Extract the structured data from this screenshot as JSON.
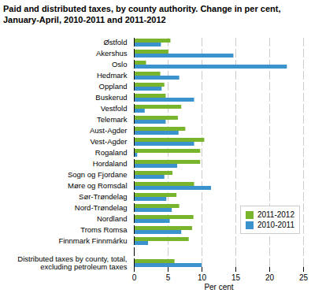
{
  "chart_data": {
    "type": "bar",
    "orientation": "horizontal",
    "title": "Paid and distributed taxes, by county authority. Change in per cent, January-April, 2010-2011 and 2011-2012",
    "x_label": "Per cent",
    "categories": [
      "Østfold",
      "Akershus",
      "Oslo",
      "Hedmark",
      "Oppland",
      "Buskerud",
      "Vestfold",
      "Telemark",
      "Aust-Agder",
      "Vest-Agder",
      "Rogaland",
      "Hordaland",
      "Sogn og Fjordane",
      "Møre og Romsdal",
      "Sør-Trøndelag",
      "Nord-Trøndelag",
      "Nordland",
      "Troms Romsa",
      "Finnmark Finnmárku",
      null,
      "Distributed taxes by county, total, excluding petroleum taxes"
    ],
    "series": [
      {
        "name": "2011-2012",
        "color": "#78b52c",
        "values": [
          5.4,
          5.1,
          1.8,
          3.9,
          4.5,
          4.7,
          7.0,
          6.5,
          7.6,
          10.4,
          9.8,
          9.8,
          5.7,
          8.9,
          6.3,
          6.7,
          8.8,
          8.6,
          8.1,
          null,
          6.0
        ]
      },
      {
        "name": "2010-2011",
        "color": "#3a93cc",
        "values": [
          4.0,
          14.7,
          22.6,
          6.7,
          4.1,
          8.9,
          1.6,
          4.7,
          6.6,
          8.9,
          0.5,
          6.4,
          4.5,
          11.4,
          4.8,
          5.6,
          5.3,
          7.0,
          2.1,
          null,
          10.0
        ]
      }
    ],
    "xlim": [
      0,
      25
    ],
    "xticks": [
      0,
      5,
      10,
      15,
      20,
      25
    ],
    "grid": true,
    "legend": "right"
  }
}
